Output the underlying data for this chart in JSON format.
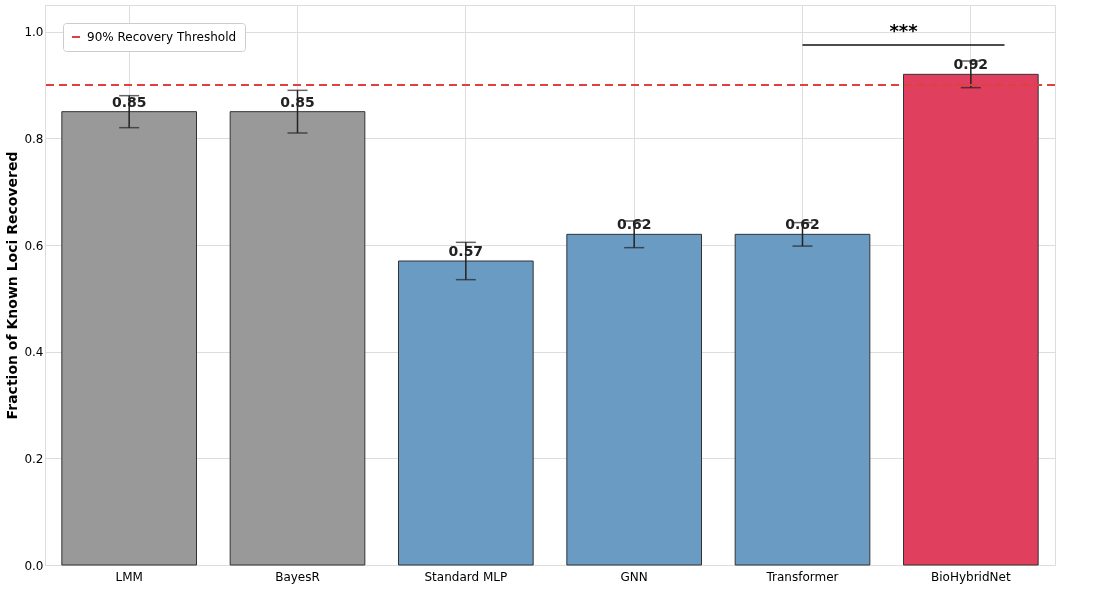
{
  "chart_data": {
    "type": "bar",
    "ylabel": "Fraction of Known Loci Recovered",
    "categories": [
      "LMM",
      "BayesR",
      "Standard MLP",
      "GNN",
      "Transformer",
      "BioHybridNet"
    ],
    "values": [
      0.85,
      0.85,
      0.57,
      0.62,
      0.62,
      0.92
    ],
    "colors": [
      "#999999",
      "#999999",
      "#6a9bc3",
      "#6a9bc3",
      "#6a9bc3",
      "#e03f5e"
    ],
    "errors": [
      0.03,
      0.04,
      0.035,
      0.025,
      0.022,
      0.025
    ],
    "ylim": [
      0,
      1.05
    ],
    "yticks": [
      {
        "value": 0,
        "label": "0.0"
      },
      0.2,
      0.4,
      0.6,
      0.8,
      {
        "value": 1,
        "label": "1.0"
      }
    ],
    "data_labels": true,
    "grid": true,
    "legend": "top left",
    "ref_lines": [
      {
        "axis": "y",
        "value": 0.9,
        "label": "90% Recovery Threshold",
        "color": "#e0413f",
        "line_style": "dashed"
      }
    ],
    "annotations": [
      "***"
    ]
  }
}
